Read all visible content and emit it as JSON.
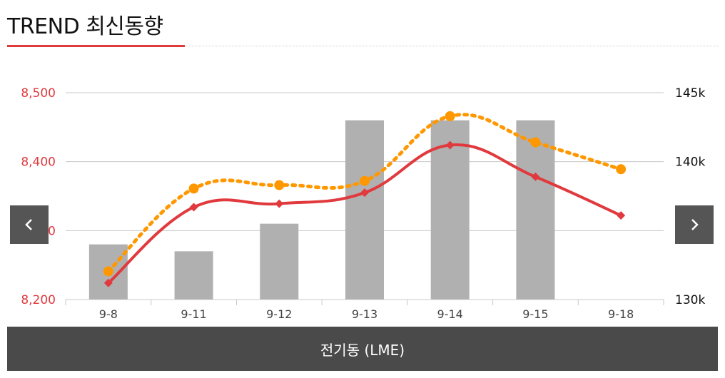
{
  "header": {
    "title": "TREND 최신동향"
  },
  "navigation": {
    "prev_icon": "chevron-left-icon",
    "next_icon": "chevron-right-icon"
  },
  "footer": {
    "label": "전기동 (LME)"
  },
  "colors": {
    "accent": "#e03a3e",
    "orange": "#ff9800",
    "bar": "#b0b0b0",
    "footer_bg": "#4a4a4a",
    "nav_bg": "#555555"
  },
  "chart_data": {
    "type": "bar",
    "categories": [
      "9-8",
      "9-11",
      "9-12",
      "9-13",
      "9-14",
      "9-15",
      "9-18"
    ],
    "left_axis": {
      "ylim": [
        8200,
        8500
      ],
      "ticks": [
        "8,500",
        "8,400",
        "8,300",
        "8,200"
      ],
      "tick_values": [
        8500,
        8400,
        8300,
        8200
      ],
      "color": "#e03a3e"
    },
    "right_axis": {
      "ylim": [
        130000,
        145000
      ],
      "ticks": [
        "145k",
        "140k",
        "135k",
        "130k"
      ],
      "tick_values": [
        145000,
        140000,
        135000,
        130000
      ],
      "color": "#111111"
    },
    "series": [
      {
        "type": "bar",
        "axis": "right",
        "color": "#b0b0b0",
        "values": [
          134000,
          133500,
          135500,
          143000,
          143000,
          143000,
          null
        ]
      },
      {
        "type": "line",
        "axis": "left",
        "color": "#e03a3e",
        "marker": "diamond",
        "dash": "solid",
        "values": [
          8224,
          8334,
          8339,
          8355,
          8424,
          8378,
          8322
        ]
      },
      {
        "type": "line",
        "axis": "left",
        "color": "#ff9800",
        "marker": "circle",
        "dash": "dotted",
        "values": [
          8241,
          8361,
          8366,
          8372,
          8466,
          8428,
          8389
        ]
      }
    ],
    "grid": true
  }
}
